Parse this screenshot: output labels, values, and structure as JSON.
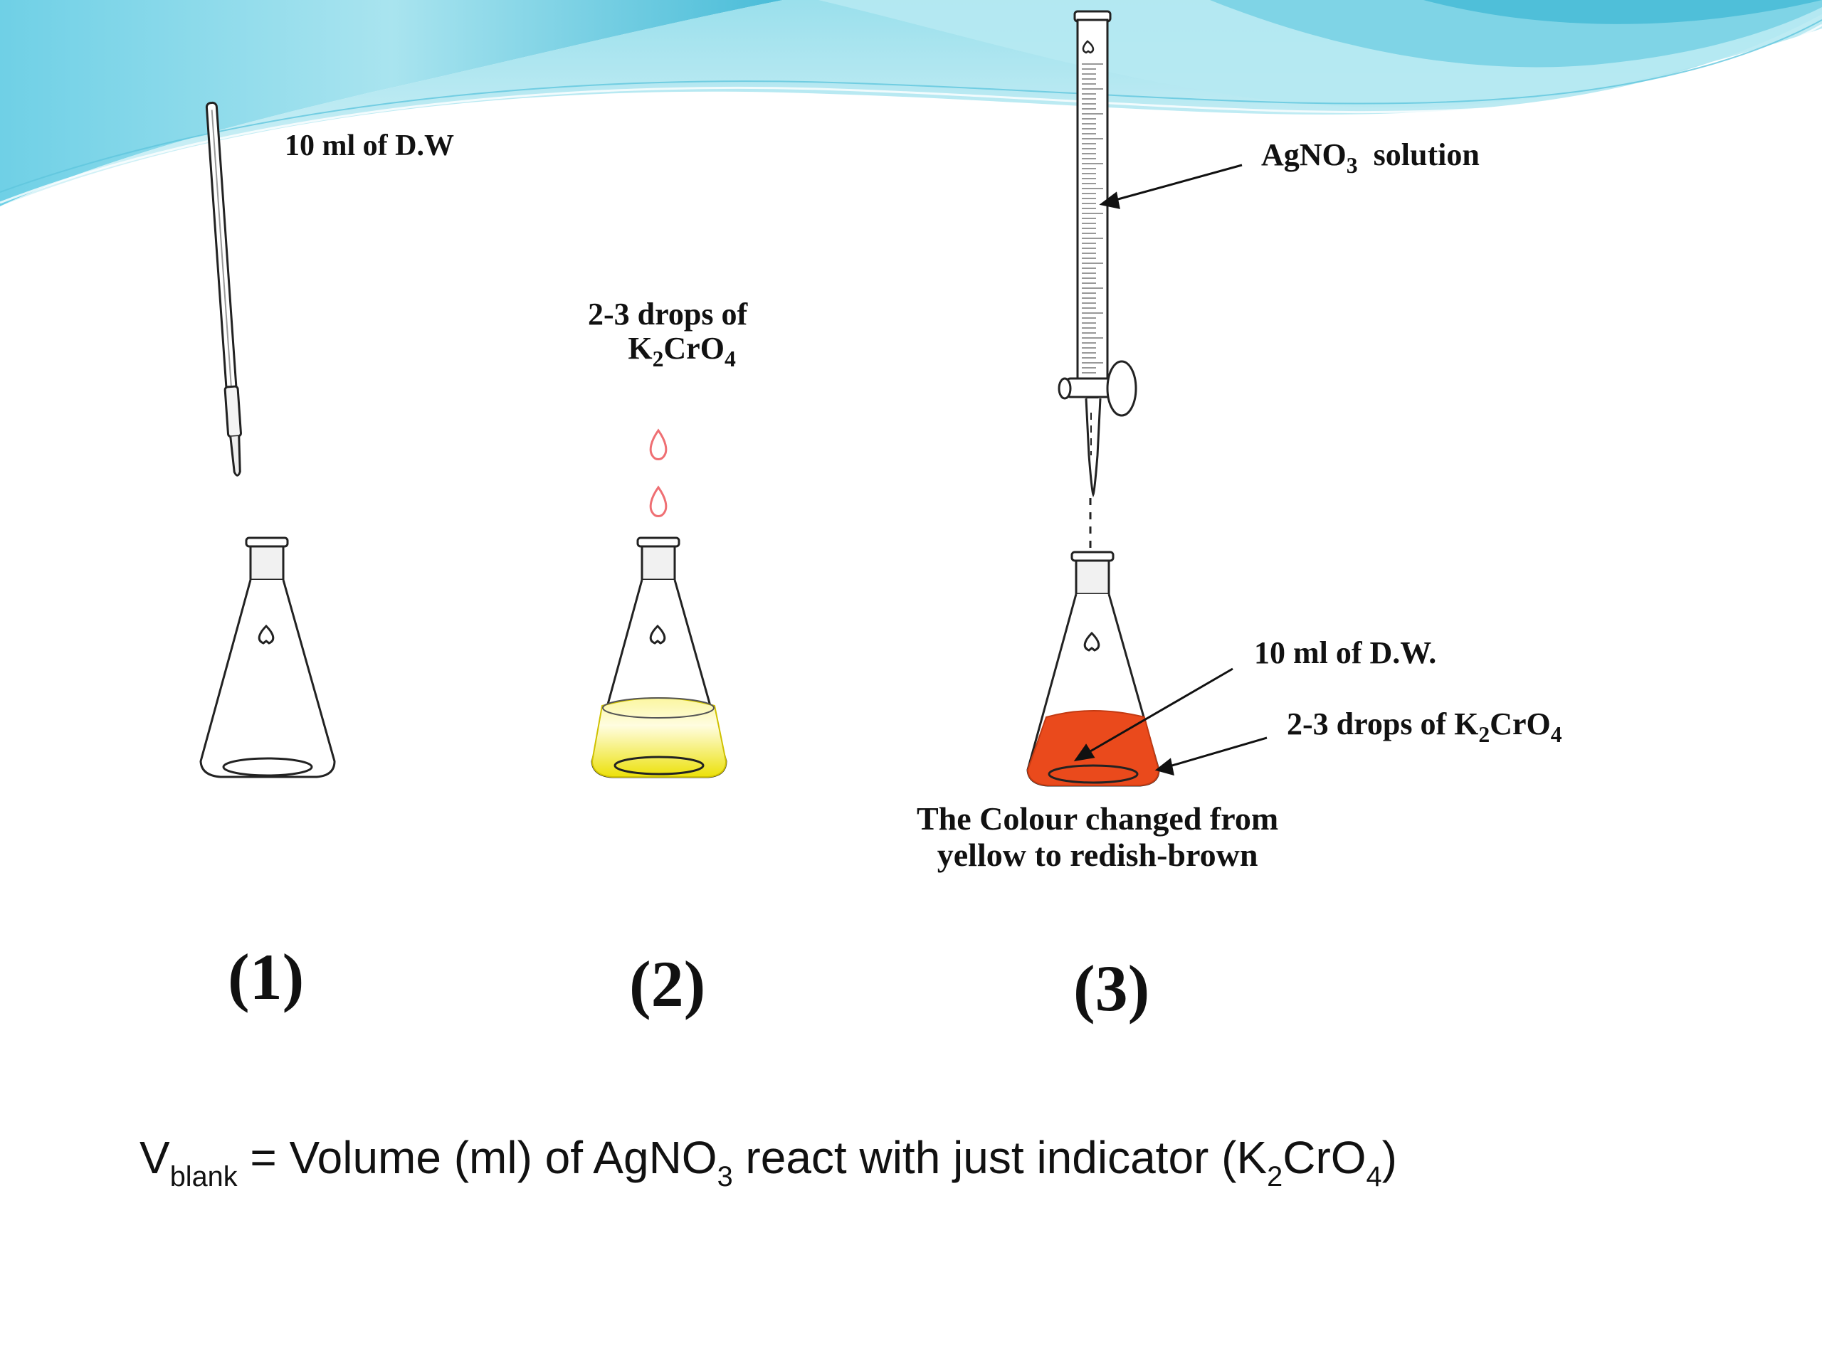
{
  "labels": {
    "pipette_label": "10 ml of D.W",
    "drops_line1": "2-3 drops of",
    "drops_k": "K",
    "drops_2": "2",
    "drops_cro": "CrO",
    "drops_4": "4",
    "burette_agno": "AgNO",
    "burette_3": "3",
    "burette_solution": "solution",
    "flask3_dw": "10 ml of D.W.",
    "flask3_drops": "2-3 drops of K",
    "flask3_drops_2": "2",
    "flask3_drops_cro": "CrO",
    "flask3_drops_4": "4",
    "colour_line1": "The Colour changed from",
    "colour_line2": "yellow to redish-brown"
  },
  "steps": {
    "step1": "(1)",
    "step2": "(2)",
    "step3": "(3)"
  },
  "formula": {
    "v": "V",
    "blank": "blank",
    "middle": " = Volume (ml) of AgNO",
    "sub3": "3",
    "middle2": " react with just indicator (K",
    "sub2": "2",
    "cro": "CrO",
    "sub4": "4",
    "end": ")"
  },
  "colors": {
    "wave_light": "#c9eef4",
    "wave_mid": "#7fd4e6",
    "wave_dark": "#3fb6d3",
    "yellow_solution": "#f2ee1a",
    "red_solution": "#ea4a1c",
    "drop_outline": "#ef6f73"
  }
}
